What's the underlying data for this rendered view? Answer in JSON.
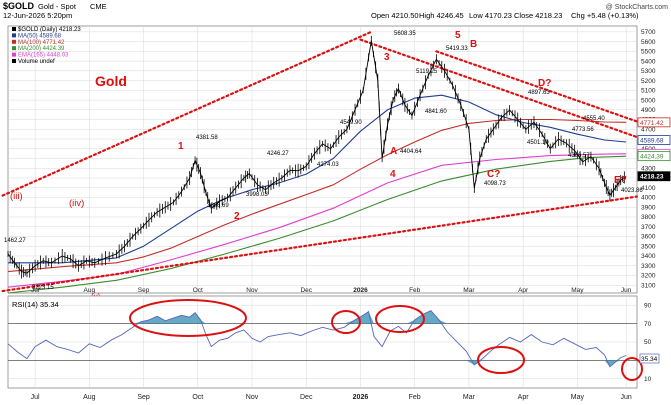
{
  "header": {
    "symbol": "$GOLD",
    "name": "Gold - Spot",
    "exchange": "CME",
    "datetime": "12-Jun-2026 5:20pm",
    "ohlc": {
      "open": "Open 4210.50",
      "high": "High 4246.45",
      "low": "Low 4170.23",
      "close": "Close 4218.23",
      "change": "Chg +5.48 (+0.13%)"
    },
    "watermark": "@ StockCharts.com"
  },
  "legend": [
    {
      "label": "$GOLD (Daily) 4218.23",
      "color": "#000000"
    },
    {
      "label": "MA(50) 4589.68",
      "color": "#1f3f8f"
    },
    {
      "label": "MA(100) 4771.42",
      "color": "#c0302a"
    },
    {
      "label": "MA(200) 4424.39",
      "color": "#3a8c2f"
    },
    {
      "label": "EMA(165) 4448.03",
      "color": "#e03fd0"
    },
    {
      "label": "Volume undef",
      "color": "#000000"
    }
  ],
  "annotations": {
    "title": "Gold",
    "waves": [
      "(iii)",
      "(iiv)",
      "(v)",
      "1",
      "2",
      "3",
      "4",
      "5",
      "A",
      "B",
      "C?",
      "D?",
      "E?"
    ],
    "price_labels": [
      "1462.27",
      "3223.15",
      "4381.58",
      "3886.69",
      "3998.03",
      "4246.27",
      "4274.03",
      "4549.90",
      "5608.35",
      "5119.25",
      "4841.60",
      "4404.64",
      "5419.33",
      "4098.73",
      "4897.63",
      "4773.56",
      "4501.10",
      "4366.57",
      "4555.40",
      "4023.86"
    ]
  },
  "colors": {
    "background": "#ffffff",
    "plot_bg": "#ffffff",
    "grid": "#d8d8d8",
    "price": "#000000",
    "trend_dots": "#dd1111",
    "rsi_line": "#5566bb",
    "rsi_fill": "#4a9abd",
    "circle": "#dd1111",
    "axis_text": "#222222",
    "callout_price": "#000000"
  },
  "callouts": [
    {
      "value": 4771.42,
      "label": "4771.42",
      "bg": "#ffffff",
      "fg": "#c0302a",
      "border": "#c0302a"
    },
    {
      "value": 4589.68,
      "label": "4589.68",
      "bg": "#ffffff",
      "fg": "#1f3f8f",
      "border": "#1f3f8f"
    },
    {
      "value": 4448.03,
      "label": "4448.03",
      "bg": "#ffffff",
      "fg": "#e03fd0",
      "border": "#e03fd0"
    },
    {
      "value": 4424.39,
      "label": "4424.39",
      "bg": "#ffffff",
      "fg": "#3a8c2f",
      "border": "#3a8c2f"
    },
    {
      "value": 4218.23,
      "label": "4218.23",
      "bg": "#000000",
      "fg": "#ffffff",
      "border": "#000000"
    }
  ],
  "chart_data": {
    "type": "line",
    "x_labels": [
      "Jul",
      "Aug",
      "Sep",
      "Oct",
      "Nov",
      "Dec",
      "2026",
      "Feb",
      "Mar",
      "Apr",
      "May",
      "Jun"
    ],
    "x_tick_positions": [
      0.5,
      1.5,
      2.5,
      3.5,
      4.5,
      5.5,
      6.5,
      7.5,
      8.5,
      9.5,
      10.5,
      11.4
    ],
    "y_ticks": [
      3100,
      3200,
      3300,
      3400,
      3500,
      3600,
      3700,
      3800,
      3900,
      4000,
      4100,
      4200,
      4300,
      4400,
      4500,
      4600,
      4700,
      4800,
      4900,
      5000,
      5100,
      5200,
      5300,
      5400,
      5500,
      5600,
      5700
    ],
    "ylim": [
      3020,
      5760
    ],
    "xlim": [
      0,
      11.6
    ],
    "price_points": [
      [
        0.0,
        3420
      ],
      [
        0.12,
        3330
      ],
      [
        0.25,
        3240
      ],
      [
        0.35,
        3223
      ],
      [
        0.5,
        3300
      ],
      [
        0.65,
        3350
      ],
      [
        0.8,
        3330
      ],
      [
        1.0,
        3400
      ],
      [
        1.15,
        3370
      ],
      [
        1.3,
        3300
      ],
      [
        1.45,
        3350
      ],
      [
        1.6,
        3330
      ],
      [
        1.8,
        3380
      ],
      [
        2.0,
        3420
      ],
      [
        2.15,
        3500
      ],
      [
        2.3,
        3600
      ],
      [
        2.45,
        3680
      ],
      [
        2.6,
        3770
      ],
      [
        2.75,
        3850
      ],
      [
        2.9,
        3900
      ],
      [
        3.05,
        3950
      ],
      [
        3.2,
        4060
      ],
      [
        3.35,
        4200
      ],
      [
        3.45,
        4381
      ],
      [
        3.55,
        4250
      ],
      [
        3.65,
        4050
      ],
      [
        3.75,
        3887
      ],
      [
        3.9,
        3960
      ],
      [
        4.05,
        3998
      ],
      [
        4.2,
        4100
      ],
      [
        4.35,
        4200
      ],
      [
        4.45,
        4246
      ],
      [
        4.6,
        4130
      ],
      [
        4.75,
        4080
      ],
      [
        4.9,
        4150
      ],
      [
        5.05,
        4200
      ],
      [
        5.2,
        4280
      ],
      [
        5.35,
        4274
      ],
      [
        5.5,
        4320
      ],
      [
        5.65,
        4450
      ],
      [
        5.8,
        4550
      ],
      [
        5.95,
        4500
      ],
      [
        6.1,
        4620
      ],
      [
        6.25,
        4700
      ],
      [
        6.4,
        4900
      ],
      [
        6.55,
        5100
      ],
      [
        6.7,
        5608
      ],
      [
        6.82,
        5200
      ],
      [
        6.9,
        4404
      ],
      [
        7.0,
        4750
      ],
      [
        7.1,
        5000
      ],
      [
        7.2,
        5119
      ],
      [
        7.32,
        4950
      ],
      [
        7.45,
        4841
      ],
      [
        7.6,
        5050
      ],
      [
        7.75,
        5250
      ],
      [
        7.9,
        5419
      ],
      [
        8.05,
        5300
      ],
      [
        8.2,
        5150
      ],
      [
        8.35,
        4950
      ],
      [
        8.5,
        4700
      ],
      [
        8.6,
        4098
      ],
      [
        8.7,
        4400
      ],
      [
        8.82,
        4600
      ],
      [
        8.95,
        4700
      ],
      [
        9.1,
        4820
      ],
      [
        9.25,
        4897
      ],
      [
        9.4,
        4800
      ],
      [
        9.55,
        4700
      ],
      [
        9.7,
        4773
      ],
      [
        9.85,
        4650
      ],
      [
        10.0,
        4501
      ],
      [
        10.15,
        4600
      ],
      [
        10.3,
        4555
      ],
      [
        10.45,
        4480
      ],
      [
        10.6,
        4366
      ],
      [
        10.75,
        4420
      ],
      [
        10.9,
        4300
      ],
      [
        11.0,
        4150
      ],
      [
        11.1,
        4023
      ],
      [
        11.2,
        4100
      ],
      [
        11.3,
        4180
      ],
      [
        11.4,
        4218
      ]
    ],
    "ma50": [
      [
        0.0,
        3330
      ],
      [
        1.0,
        3330
      ],
      [
        2.0,
        3380
      ],
      [
        2.5,
        3500
      ],
      [
        3.0,
        3680
      ],
      [
        3.5,
        3860
      ],
      [
        4.0,
        3990
      ],
      [
        4.5,
        4080
      ],
      [
        5.0,
        4150
      ],
      [
        5.5,
        4240
      ],
      [
        6.0,
        4400
      ],
      [
        6.5,
        4680
      ],
      [
        7.0,
        4900
      ],
      [
        7.5,
        5020
      ],
      [
        8.0,
        5050
      ],
      [
        8.5,
        4980
      ],
      [
        9.0,
        4850
      ],
      [
        9.5,
        4770
      ],
      [
        10.0,
        4720
      ],
      [
        10.5,
        4650
      ],
      [
        11.0,
        4590
      ],
      [
        11.4,
        4570
      ]
    ],
    "ma100": [
      [
        0.0,
        3240
      ],
      [
        1.0,
        3290
      ],
      [
        2.0,
        3330
      ],
      [
        2.5,
        3390
      ],
      [
        3.0,
        3480
      ],
      [
        3.5,
        3600
      ],
      [
        4.0,
        3720
      ],
      [
        4.5,
        3830
      ],
      [
        5.0,
        3930
      ],
      [
        5.5,
        4030
      ],
      [
        6.0,
        4130
      ],
      [
        6.5,
        4290
      ],
      [
        7.0,
        4440
      ],
      [
        7.5,
        4570
      ],
      [
        8.0,
        4690
      ],
      [
        8.5,
        4760
      ],
      [
        9.0,
        4790
      ],
      [
        9.5,
        4800
      ],
      [
        10.0,
        4800
      ],
      [
        10.5,
        4790
      ],
      [
        11.0,
        4775
      ],
      [
        11.4,
        4772
      ]
    ],
    "ma200": [
      [
        0.0,
        3020
      ],
      [
        1.0,
        3080
      ],
      [
        2.0,
        3150
      ],
      [
        3.0,
        3270
      ],
      [
        4.0,
        3420
      ],
      [
        5.0,
        3580
      ],
      [
        6.0,
        3760
      ],
      [
        7.0,
        3980
      ],
      [
        8.0,
        4170
      ],
      [
        9.0,
        4290
      ],
      [
        10.0,
        4370
      ],
      [
        10.7,
        4410
      ],
      [
        11.4,
        4424
      ]
    ],
    "ema165": [
      [
        0.0,
        3080
      ],
      [
        1.0,
        3140
      ],
      [
        2.0,
        3210
      ],
      [
        3.0,
        3360
      ],
      [
        4.0,
        3520
      ],
      [
        5.0,
        3690
      ],
      [
        6.0,
        3890
      ],
      [
        7.0,
        4150
      ],
      [
        8.0,
        4330
      ],
      [
        9.0,
        4390
      ],
      [
        10.0,
        4430
      ],
      [
        11.0,
        4445
      ],
      [
        11.4,
        4448
      ]
    ],
    "trendlines": [
      {
        "name": "upper",
        "from": [
          -0.1,
          4020
        ],
        "to": [
          6.7,
          5700
        ]
      },
      {
        "name": "lower",
        "from": [
          -0.1,
          3040
        ],
        "to": [
          11.6,
          4010
        ]
      },
      {
        "name": "descending",
        "from": [
          6.5,
          5620
        ],
        "to": [
          11.6,
          4620
        ]
      },
      {
        "name": "descending2",
        "from": [
          7.9,
          5500
        ],
        "to": [
          11.6,
          4780
        ]
      }
    ],
    "rsi": {
      "title": "RSI(14) 35.34",
      "ylim": [
        0,
        100
      ],
      "y_ticks": [
        10,
        30,
        50,
        70,
        90
      ],
      "levels": [
        30,
        70
      ],
      "points": [
        [
          0.0,
          48
        ],
        [
          0.2,
          38
        ],
        [
          0.35,
          32
        ],
        [
          0.5,
          45
        ],
        [
          0.7,
          52
        ],
        [
          0.9,
          45
        ],
        [
          1.1,
          42
        ],
        [
          1.3,
          38
        ],
        [
          1.5,
          48
        ],
        [
          1.7,
          44
        ],
        [
          1.9,
          52
        ],
        [
          2.1,
          58
        ],
        [
          2.3,
          66
        ],
        [
          2.45,
          72
        ],
        [
          2.6,
          74
        ],
        [
          2.75,
          78
        ],
        [
          2.9,
          73
        ],
        [
          3.05,
          76
        ],
        [
          3.2,
          79
        ],
        [
          3.35,
          77
        ],
        [
          3.45,
          82
        ],
        [
          3.55,
          74
        ],
        [
          3.65,
          58
        ],
        [
          3.75,
          45
        ],
        [
          3.9,
          52
        ],
        [
          4.05,
          54
        ],
        [
          4.2,
          60
        ],
        [
          4.35,
          63
        ],
        [
          4.5,
          54
        ],
        [
          4.65,
          50
        ],
        [
          4.8,
          56
        ],
        [
          5.0,
          58
        ],
        [
          5.2,
          60
        ],
        [
          5.4,
          57
        ],
        [
          5.6,
          62
        ],
        [
          5.8,
          66
        ],
        [
          6.0,
          63
        ],
        [
          6.2,
          66
        ],
        [
          6.4,
          74
        ],
        [
          6.55,
          79
        ],
        [
          6.65,
          83
        ],
        [
          6.75,
          56
        ],
        [
          6.9,
          45
        ],
        [
          7.05,
          62
        ],
        [
          7.2,
          67
        ],
        [
          7.35,
          60
        ],
        [
          7.5,
          74
        ],
        [
          7.65,
          80
        ],
        [
          7.8,
          84
        ],
        [
          7.95,
          74
        ],
        [
          8.1,
          61
        ],
        [
          8.25,
          52
        ],
        [
          8.45,
          40
        ],
        [
          8.6,
          25
        ],
        [
          8.75,
          32
        ],
        [
          8.9,
          40
        ],
        [
          9.05,
          47
        ],
        [
          9.25,
          55
        ],
        [
          9.45,
          50
        ],
        [
          9.65,
          58
        ],
        [
          9.85,
          50
        ],
        [
          10.05,
          47
        ],
        [
          10.25,
          54
        ],
        [
          10.45,
          48
        ],
        [
          10.65,
          42
        ],
        [
          10.85,
          44
        ],
        [
          11.0,
          36
        ],
        [
          11.1,
          23
        ],
        [
          11.2,
          28
        ],
        [
          11.3,
          33
        ],
        [
          11.4,
          35.34
        ]
      ]
    }
  }
}
